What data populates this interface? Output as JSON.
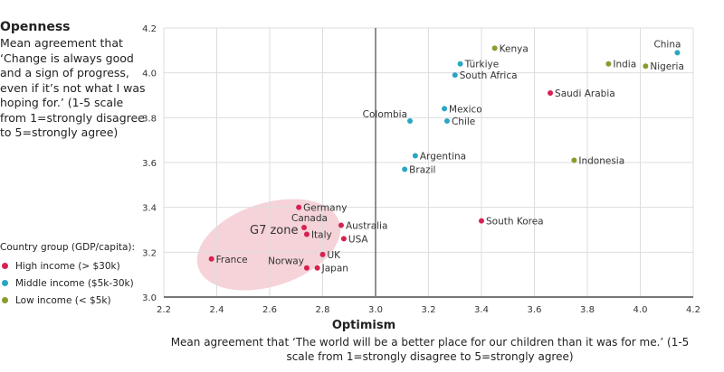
{
  "chart_data": {
    "type": "scatter",
    "ylabel": "Openness",
    "ylabel_desc": "Mean agreement that ‘Change is always good and a sign of progress, even if it’s not what I was hoping for.’ (1-5 scale from 1=strongly disagree to 5=strongly agree)",
    "xlabel": "Optimism",
    "xlabel_desc": "Mean agreement that ‘The world will be a better place for our children than it was for me.’ (1-5 scale from 1=strongly disagree to 5=strongly agree)",
    "xlim": [
      2.2,
      4.2
    ],
    "ylim": [
      3.0,
      4.2
    ],
    "xticks": [
      "2.2",
      "2.4",
      "2.6",
      "2.8",
      "3.0",
      "3.2",
      "3.4",
      "3.6",
      "3.8",
      "4.0",
      "4.2"
    ],
    "yticks": [
      "3.0",
      "3.2",
      "3.4",
      "3.6",
      "3.8",
      "4.0",
      "4.2"
    ],
    "grid": true,
    "reference_line_x": 3.0,
    "annotation": "G7 zone",
    "legend": {
      "title": "Country group (GDP/capita):",
      "placement": "left",
      "groups": [
        {
          "key": "high",
          "label": "High income (> $30k)",
          "color": "#d62250"
        },
        {
          "key": "middle",
          "label": "Middle income ($5k-30k)",
          "color": "#2ba5c4"
        },
        {
          "key": "low",
          "label": "Low income (< $5k)",
          "color": "#8c9a2f"
        }
      ]
    },
    "points": [
      {
        "name": "Kenya",
        "x": 3.45,
        "y": 4.11,
        "group": "low",
        "label": "right"
      },
      {
        "name": "China",
        "x": 4.14,
        "y": 4.09,
        "group": "middle",
        "label": "above"
      },
      {
        "name": "India",
        "x": 3.88,
        "y": 4.04,
        "group": "low",
        "label": "right"
      },
      {
        "name": "Nigeria",
        "x": 4.02,
        "y": 4.03,
        "group": "low",
        "label": "right"
      },
      {
        "name": "Türkiye",
        "x": 3.32,
        "y": 4.04,
        "group": "middle",
        "label": "right"
      },
      {
        "name": "South Africa",
        "x": 3.3,
        "y": 3.99,
        "group": "middle",
        "label": "right"
      },
      {
        "name": "Saudi Arabia",
        "x": 3.66,
        "y": 3.91,
        "group": "high",
        "label": "right"
      },
      {
        "name": "Mexico",
        "x": 3.26,
        "y": 3.84,
        "group": "middle",
        "label": "right"
      },
      {
        "name": "Colombia",
        "x": 3.13,
        "y": 3.785,
        "group": "middle",
        "label": "above-left"
      },
      {
        "name": "Chile",
        "x": 3.27,
        "y": 3.785,
        "group": "middle",
        "label": "right"
      },
      {
        "name": "Argentina",
        "x": 3.15,
        "y": 3.63,
        "group": "middle",
        "label": "right"
      },
      {
        "name": "Brazil",
        "x": 3.11,
        "y": 3.57,
        "group": "middle",
        "label": "right"
      },
      {
        "name": "Indonesia",
        "x": 3.75,
        "y": 3.61,
        "group": "low",
        "label": "right"
      },
      {
        "name": "South Korea",
        "x": 3.4,
        "y": 3.34,
        "group": "high",
        "label": "right"
      },
      {
        "name": "Germany",
        "x": 2.71,
        "y": 3.4,
        "group": "high",
        "label": "right"
      },
      {
        "name": "Canada",
        "x": 2.73,
        "y": 3.31,
        "group": "high",
        "label": "above"
      },
      {
        "name": "Australia",
        "x": 2.87,
        "y": 3.32,
        "group": "high",
        "label": "right"
      },
      {
        "name": "Italy",
        "x": 2.74,
        "y": 3.28,
        "group": "high",
        "label": "right"
      },
      {
        "name": "USA",
        "x": 2.88,
        "y": 3.26,
        "group": "high",
        "label": "right"
      },
      {
        "name": "UK",
        "x": 2.8,
        "y": 3.19,
        "group": "high",
        "label": "right"
      },
      {
        "name": "France",
        "x": 2.38,
        "y": 3.17,
        "group": "high",
        "label": "right"
      },
      {
        "name": "Norway",
        "x": 2.74,
        "y": 3.13,
        "group": "high",
        "label": "above-left"
      },
      {
        "name": "Japan",
        "x": 2.78,
        "y": 3.13,
        "group": "high",
        "label": "right"
      }
    ]
  }
}
